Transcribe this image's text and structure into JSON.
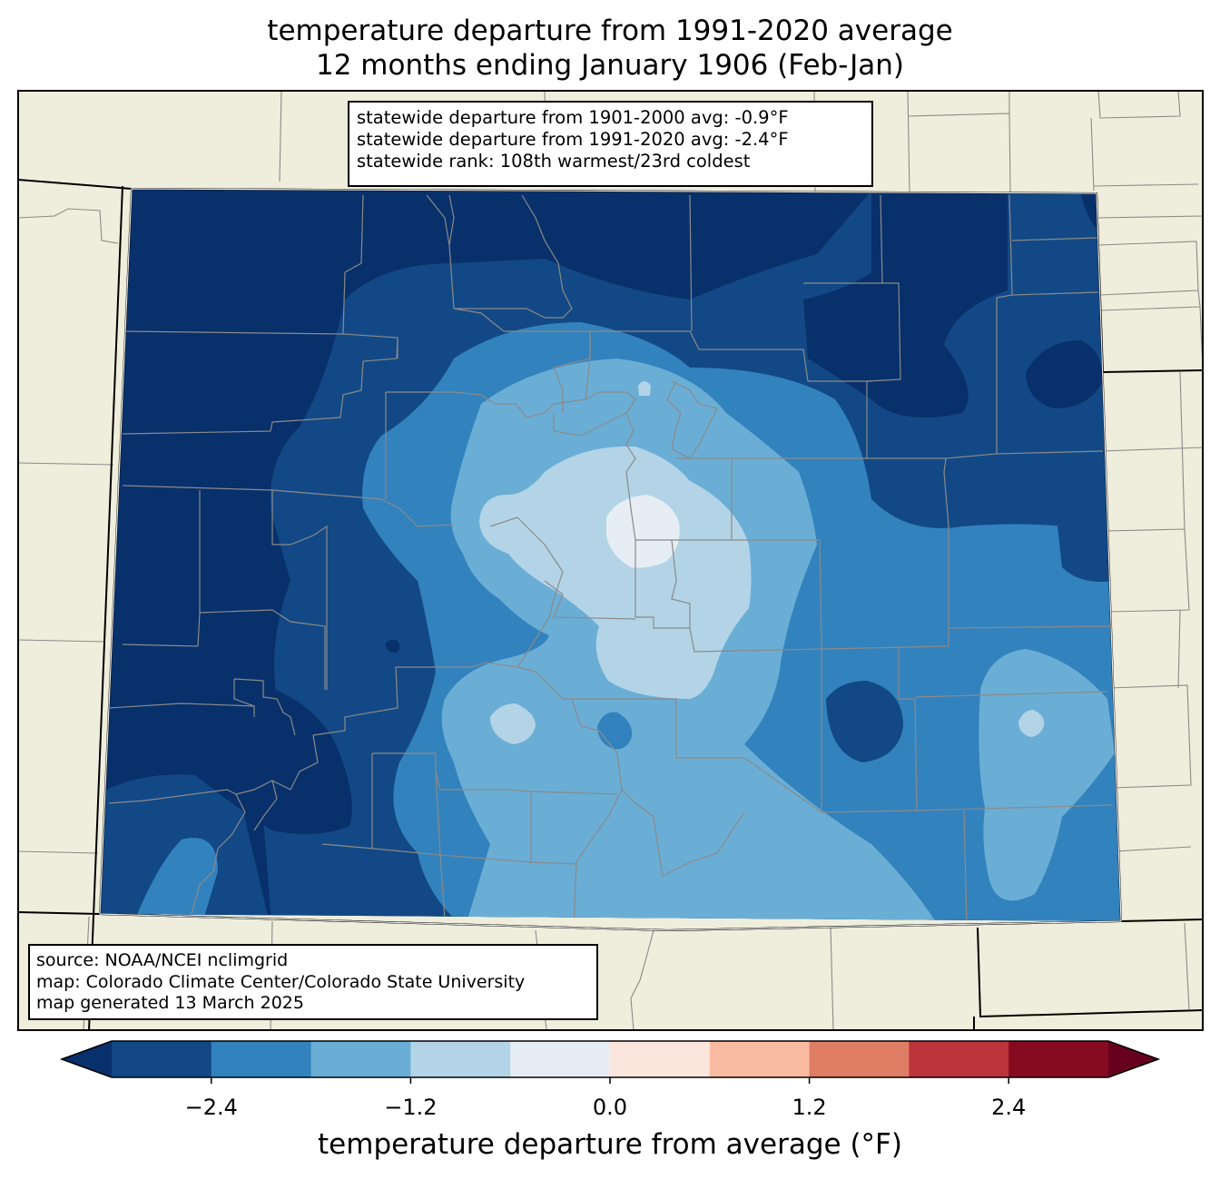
{
  "title": {
    "line1": "temperature departure from 1991-2020 average",
    "line2": "12 months ending January 1906 (Feb-Jan)"
  },
  "stats": {
    "line1": "statewide departure from 1901-2000 avg: -0.9°F",
    "line2": "statewide departure from 1991-2020 avg: -2.4°F",
    "line3": "statewide rank: 108th warmest/23rd coldest"
  },
  "source": {
    "line1": "source: NOAA/NCEI nclimgrid",
    "line2": "map: Colorado Climate Center/Colorado State University",
    "line3": "map generated 13 March 2025"
  },
  "colorbar": {
    "label": "temperature departure from average (°F)",
    "ticks": [
      "−2.4",
      "−1.2",
      "0.0",
      "1.2",
      "2.4"
    ],
    "tick_values": [
      -2.4,
      -1.2,
      0.0,
      1.2,
      2.4
    ],
    "boundaries": [
      -3.0,
      -2.4,
      -1.8,
      -1.2,
      -0.6,
      0.0,
      0.6,
      1.2,
      1.8,
      2.4,
      3.0
    ],
    "colors": [
      "#08306b",
      "#124885",
      "#3282bd",
      "#6aaed6",
      "#b3d4e7",
      "#e6edf4",
      "#fae6dc",
      "#f8baa0",
      "#e07d65",
      "#bd343a",
      "#860b21",
      "#67001f"
    ],
    "extend": "both"
  },
  "map": {
    "background_color": "#efeedc",
    "colors": {
      "lt_m24": "#08306b",
      "m24_m18": "#124885",
      "m18_m12": "#3282bd",
      "m12_m06": "#6aaed6",
      "m06_0": "#b3d4e7",
      "0_06": "#e6edf4"
    }
  }
}
